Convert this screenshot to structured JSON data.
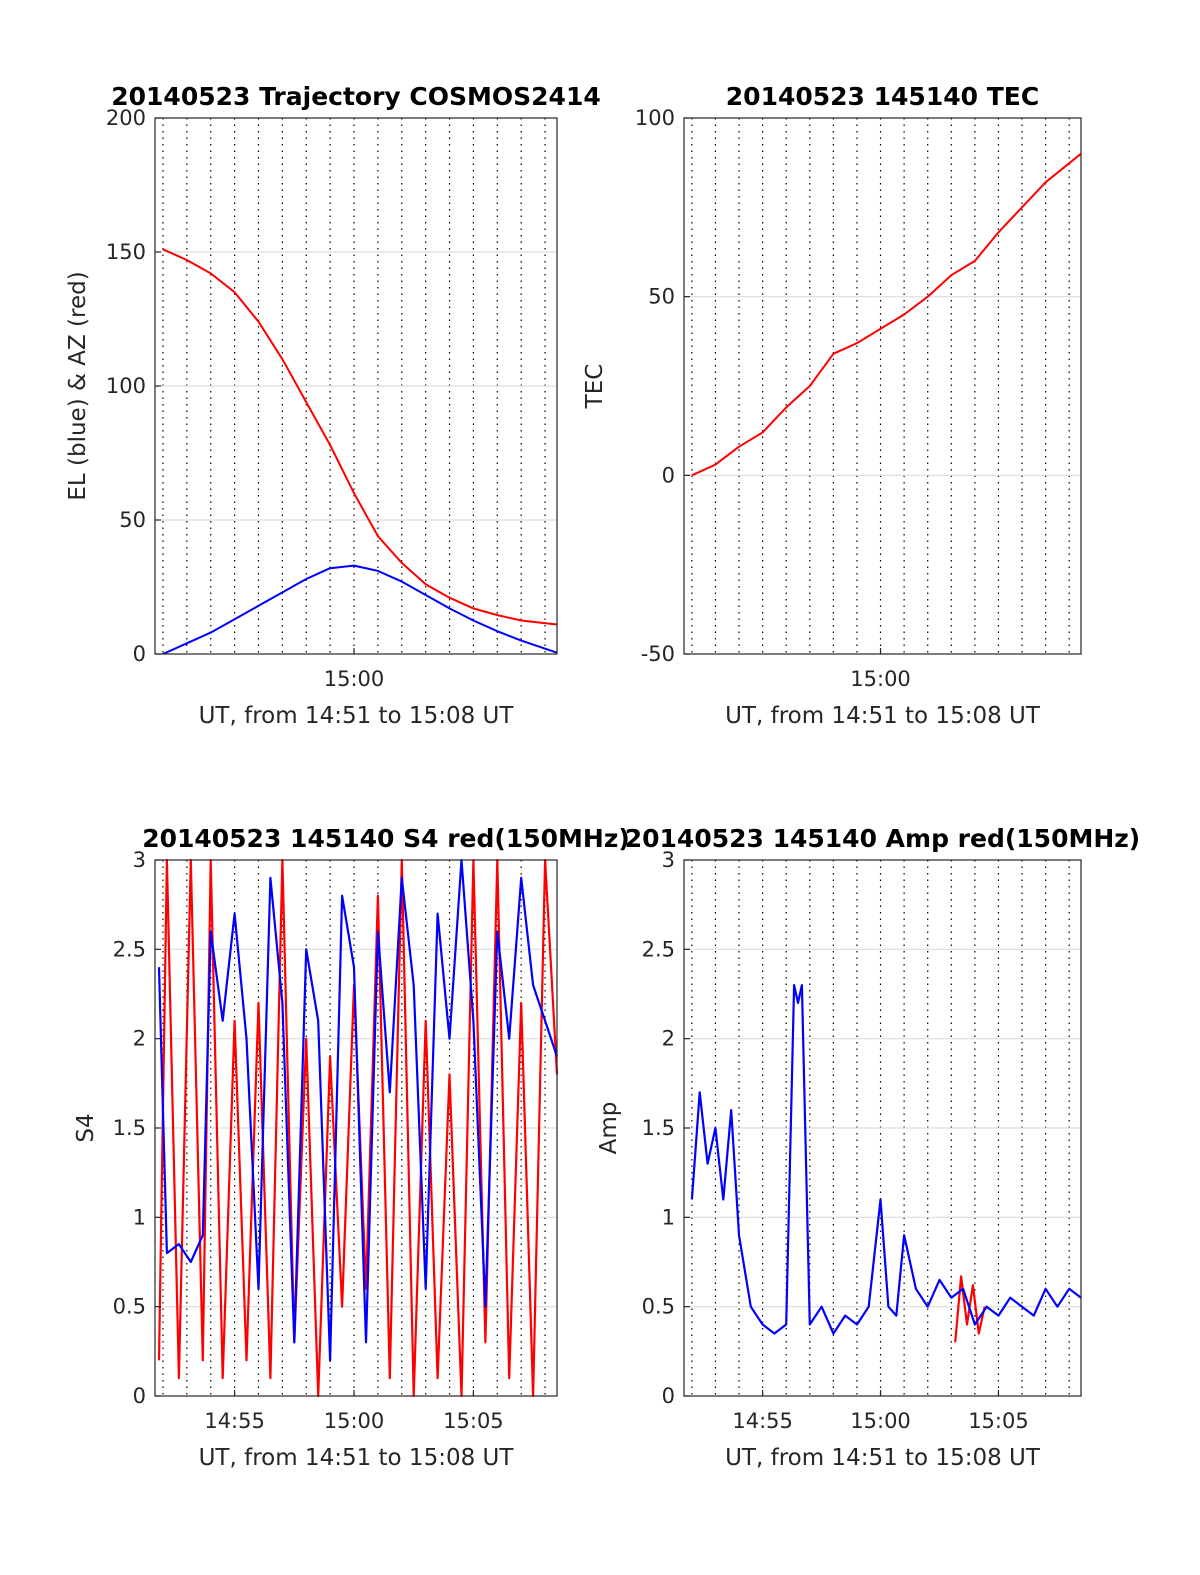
{
  "chart_data": [
    {
      "type": "line",
      "title": "20140523 Trajectory COSMOS2414",
      "xlabel": "UT, from 14:51 to 15:08 UT",
      "ylabel": "EL (blue) & AZ (red)",
      "xlim": [
        "14:51:40",
        "15:08:30"
      ],
      "ylim": [
        0,
        200
      ],
      "x_ticks": [
        "15:00"
      ],
      "y_ticks": [
        0,
        50,
        100,
        150,
        200
      ],
      "grid": true,
      "series": [
        {
          "color": "#ff0000",
          "x": [
            "14:52:00",
            "14:53:00",
            "14:54:00",
            "14:55:00",
            "14:56:00",
            "14:57:00",
            "14:58:00",
            "14:59:00",
            "15:00:00",
            "15:01:00",
            "15:02:00",
            "15:03:00",
            "15:04:00",
            "15:05:00",
            "15:06:00",
            "15:07:00",
            "15:08:30"
          ],
          "values": [
            151,
            147,
            142,
            135,
            124,
            110,
            94,
            78,
            60,
            44,
            34,
            26,
            21,
            17,
            14.5,
            12.5,
            11
          ]
        },
        {
          "color": "#0000ff",
          "x": [
            "14:52:00",
            "14:53:00",
            "14:54:00",
            "14:55:00",
            "14:56:00",
            "14:57:00",
            "14:58:00",
            "14:59:00",
            "15:00:00",
            "15:01:00",
            "15:02:00",
            "15:03:00",
            "15:04:00",
            "15:05:00",
            "15:06:00",
            "15:07:00",
            "15:08:30"
          ],
          "values": [
            0,
            4,
            8,
            13,
            18,
            23,
            28,
            32,
            33,
            31,
            27,
            22,
            17,
            12.5,
            8.5,
            5,
            0.5
          ]
        }
      ]
    },
    {
      "type": "line",
      "title": "20140523 145140 TEC",
      "xlabel": "UT, from 14:51 to 15:08 UT",
      "ylabel": "TEC",
      "xlim": [
        "14:51:40",
        "15:08:30"
      ],
      "ylim": [
        -50,
        100
      ],
      "x_ticks": [
        "15:00"
      ],
      "y_ticks": [
        -50,
        0,
        50,
        100
      ],
      "grid": true,
      "series": [
        {
          "color": "#ff0000",
          "x": [
            "14:52:00",
            "14:53:00",
            "14:54:00",
            "14:55:00",
            "14:56:00",
            "14:57:00",
            "14:58:00",
            "14:59:00",
            "15:00:00",
            "15:01:00",
            "15:02:00",
            "15:03:00",
            "15:04:00",
            "15:05:00",
            "15:06:00",
            "15:07:00",
            "15:08:30"
          ],
          "values": [
            0,
            3,
            8,
            12,
            19,
            25,
            34,
            37,
            41,
            45,
            50,
            56,
            60,
            68,
            75,
            82,
            90
          ]
        }
      ]
    },
    {
      "type": "line",
      "title": "20140523 145140 S4 red(150MHz)",
      "xlabel": "UT, from 14:51 to 15:08 UT",
      "ylabel": "S4",
      "xlim": [
        "14:51:40",
        "15:08:30"
      ],
      "ylim": [
        0,
        3
      ],
      "x_ticks": [
        "14:55",
        "15:00",
        "15:05"
      ],
      "y_ticks": [
        0,
        0.5,
        1,
        1.5,
        2,
        2.5,
        3
      ],
      "grid": true,
      "series": [
        {
          "color": "#ff0000",
          "x": [
            "14:51:50",
            "14:52:10",
            "14:52:40",
            "14:53:10",
            "14:53:40",
            "14:54:00",
            "14:54:30",
            "14:55:00",
            "14:55:30",
            "14:56:00",
            "14:56:30",
            "14:57:00",
            "14:57:30",
            "14:58:00",
            "14:58:30",
            "14:59:00",
            "14:59:30",
            "15:00:00",
            "15:00:30",
            "15:01:00",
            "15:01:30",
            "15:02:00",
            "15:02:30",
            "15:03:00",
            "15:03:30",
            "15:04:00",
            "15:04:30",
            "15:05:00",
            "15:05:30",
            "15:06:00",
            "15:06:30",
            "15:07:00",
            "15:07:30",
            "15:08:00",
            "15:08:30"
          ],
          "values": [
            0.2,
            3,
            0.1,
            3,
            0.2,
            3,
            0.1,
            2.1,
            0.2,
            2.2,
            0.1,
            3,
            0.3,
            2.0,
            0,
            1.9,
            0.5,
            2.3,
            0.6,
            2.8,
            0.1,
            3,
            0,
            2.1,
            0.1,
            1.8,
            0,
            3,
            0.3,
            3,
            0.1,
            2.2,
            0,
            3,
            1.8
          ]
        },
        {
          "color": "#0000ff",
          "x": [
            "14:51:50",
            "14:52:10",
            "14:52:40",
            "14:53:10",
            "14:53:40",
            "14:54:00",
            "14:54:30",
            "14:55:00",
            "14:55:30",
            "14:56:00",
            "14:56:30",
            "14:57:00",
            "14:57:30",
            "14:58:00",
            "14:58:30",
            "14:59:00",
            "14:59:30",
            "15:00:00",
            "15:00:30",
            "15:01:00",
            "15:01:30",
            "15:02:00",
            "15:02:30",
            "15:03:00",
            "15:03:30",
            "15:04:00",
            "15:04:30",
            "15:05:00",
            "15:05:30",
            "15:06:00",
            "15:06:30",
            "15:07:00",
            "15:07:30",
            "15:08:00",
            "15:08:30"
          ],
          "values": [
            2.4,
            0.8,
            0.85,
            0.75,
            0.9,
            2.6,
            2.1,
            2.7,
            2.0,
            0.6,
            2.9,
            2.2,
            0.3,
            2.5,
            2.1,
            0.2,
            2.8,
            2.4,
            0.3,
            2.6,
            1.7,
            2.9,
            2.3,
            0.6,
            2.7,
            2.0,
            3,
            2.1,
            0.5,
            2.6,
            2.0,
            2.9,
            2.3,
            2.1,
            1.9
          ]
        }
      ]
    },
    {
      "type": "line",
      "title": "20140523 145140 Amp red(150MHz)",
      "xlabel": "UT, from 14:51 to 15:08 UT",
      "ylabel": "Amp",
      "xlim": [
        "14:51:40",
        "15:08:30"
      ],
      "ylim": [
        0,
        3
      ],
      "x_ticks": [
        "14:55",
        "15:00",
        "15:05"
      ],
      "y_ticks": [
        0,
        0.5,
        1,
        1.5,
        2,
        2.5,
        3
      ],
      "grid": true,
      "series": [
        {
          "color": "#ff0000",
          "x": [
            "15:03:10",
            "15:03:25",
            "15:03:40",
            "15:03:55",
            "15:04:10",
            "15:04:25"
          ],
          "values": [
            0.3,
            0.67,
            0.4,
            0.62,
            0.35,
            0.5
          ]
        },
        {
          "color": "#0000ff",
          "x": [
            "14:52:00",
            "14:52:20",
            "14:52:40",
            "14:53:00",
            "14:53:20",
            "14:53:40",
            "14:54:00",
            "14:54:30",
            "14:55:00",
            "14:55:30",
            "14:56:00",
            "14:56:20",
            "14:56:30",
            "14:56:40",
            "14:57:00",
            "14:57:30",
            "14:58:00",
            "14:58:30",
            "14:59:00",
            "14:59:30",
            "15:00:00",
            "15:00:20",
            "15:00:40",
            "15:01:00",
            "15:01:30",
            "15:02:00",
            "15:02:30",
            "15:03:00",
            "15:03:30",
            "15:04:00",
            "15:04:30",
            "15:05:00",
            "15:05:30",
            "15:06:00",
            "15:06:30",
            "15:07:00",
            "15:07:30",
            "15:08:00",
            "15:08:30"
          ],
          "values": [
            1.1,
            1.7,
            1.3,
            1.5,
            1.1,
            1.6,
            0.9,
            0.5,
            0.4,
            0.35,
            0.4,
            2.3,
            2.2,
            2.3,
            0.4,
            0.5,
            0.35,
            0.45,
            0.4,
            0.5,
            1.1,
            0.5,
            0.45,
            0.9,
            0.6,
            0.5,
            0.65,
            0.55,
            0.6,
            0.4,
            0.5,
            0.45,
            0.55,
            0.5,
            0.45,
            0.6,
            0.5,
            0.6,
            0.55
          ]
        }
      ]
    }
  ]
}
